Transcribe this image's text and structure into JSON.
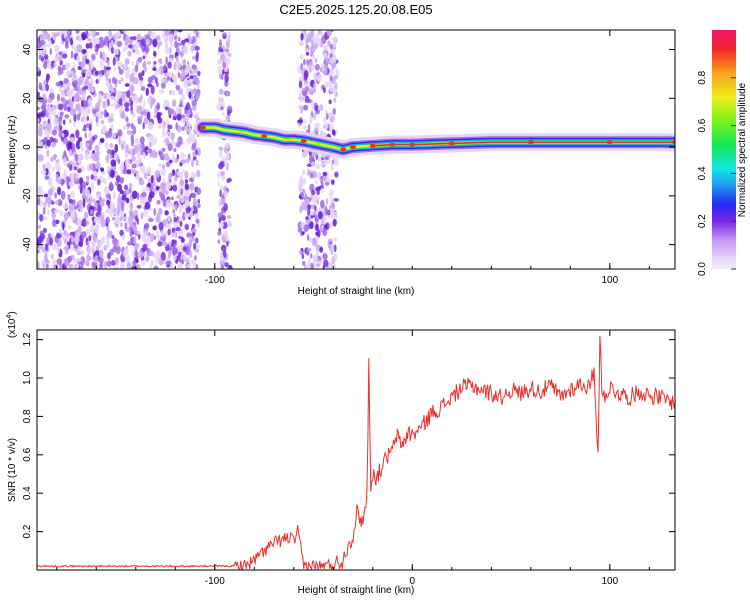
{
  "title": "C2E5.2025.125.20.08.E05",
  "chart_data": [
    {
      "type": "heatmap",
      "xlabel": "Height of straight line (km)",
      "ylabel": "Frequency (Hz)",
      "xlim": [
        -190,
        133
      ],
      "ylim": [
        -50,
        48
      ],
      "xticks": [
        -100,
        100
      ],
      "yticks": [
        -40,
        -20,
        0,
        20,
        40
      ],
      "colorbar": {
        "label": "Normalized spectral amplitude",
        "range": [
          0,
          1
        ],
        "ticks": [
          0.0,
          0.2,
          0.4,
          0.6,
          0.8
        ],
        "tick_labels": [
          "0.0",
          "0.2",
          "0.4",
          "0.6",
          "0.8"
        ]
      },
      "ridge": [
        {
          "x": -106,
          "y": 8
        },
        {
          "x": -100,
          "y": 8
        },
        {
          "x": -95,
          "y": 7
        },
        {
          "x": -90,
          "y": 6.5
        },
        {
          "x": -85,
          "y": 6
        },
        {
          "x": -80,
          "y": 5
        },
        {
          "x": -75,
          "y": 4.5
        },
        {
          "x": -70,
          "y": 4
        },
        {
          "x": -65,
          "y": 3
        },
        {
          "x": -60,
          "y": 3
        },
        {
          "x": -55,
          "y": 2.5
        },
        {
          "x": -40,
          "y": 0
        },
        {
          "x": -35,
          "y": -1
        },
        {
          "x": -30,
          "y": 0
        },
        {
          "x": -20,
          "y": 0.5
        },
        {
          "x": -10,
          "y": 1
        },
        {
          "x": 0,
          "y": 1
        },
        {
          "x": 20,
          "y": 1.5
        },
        {
          "x": 40,
          "y": 2
        },
        {
          "x": 60,
          "y": 2
        },
        {
          "x": 80,
          "y": 2
        },
        {
          "x": 100,
          "y": 2
        },
        {
          "x": 133,
          "y": 2
        }
      ],
      "noise_regions": [
        [
          -190,
          -108
        ],
        [
          -98,
          -92
        ],
        [
          -57,
          -38
        ]
      ],
      "grid": false
    },
    {
      "type": "line",
      "xlabel": "Height of straight line (km)",
      "ylabel": "SNR (10 * v/v)",
      "y_multiplier": "(x10",
      "y_multiplier_exp": "4",
      "y_multiplier_close": ")",
      "xlim": [
        -190,
        133
      ],
      "ylim": [
        0,
        1.25
      ],
      "xticks": [
        -100,
        0,
        100
      ],
      "yticks": [
        0.2,
        0.4,
        0.6,
        0.8,
        1.0,
        1.2
      ],
      "ytick_labels": [
        "0.2",
        "0.4",
        "0.6",
        "0.8",
        "1.0",
        "1.2"
      ],
      "series": [
        {
          "color": "#e8322d",
          "x": [
            -190,
            -150,
            -110,
            -85,
            -80,
            -75,
            -70,
            -65,
            -62,
            -60,
            -58,
            -56,
            -55,
            -52,
            -50,
            -45,
            -40,
            -35,
            -33,
            -30,
            -28,
            -25,
            -23,
            -22,
            -21,
            -20,
            -18,
            -15,
            -12,
            -10,
            -8,
            -5,
            -2,
            0,
            5,
            10,
            15,
            20,
            25,
            30,
            35,
            40,
            45,
            50,
            55,
            60,
            65,
            70,
            75,
            80,
            85,
            90,
            92,
            94,
            95,
            96,
            98,
            100,
            105,
            110,
            115,
            120,
            125,
            130,
            133
          ],
          "y": [
            0.02,
            0.02,
            0.02,
            0.02,
            0.05,
            0.1,
            0.14,
            0.16,
            0.17,
            0.15,
            0.2,
            0.08,
            0.02,
            0.02,
            0.02,
            0.02,
            0.03,
            0.05,
            0.12,
            0.18,
            0.3,
            0.25,
            0.38,
            1.07,
            0.45,
            0.5,
            0.48,
            0.55,
            0.6,
            0.62,
            0.7,
            0.65,
            0.72,
            0.7,
            0.75,
            0.82,
            0.85,
            0.9,
            0.95,
            0.96,
            0.94,
            0.92,
            0.9,
            0.94,
            0.92,
            0.95,
            0.93,
            0.96,
            0.9,
            0.94,
            0.97,
            0.95,
            1.05,
            0.6,
            1.25,
            0.9,
            0.92,
            0.95,
            0.92,
            0.9,
            0.93,
            0.91,
            0.9,
            0.88,
            0.87
          ]
        }
      ],
      "grid": false
    }
  ]
}
